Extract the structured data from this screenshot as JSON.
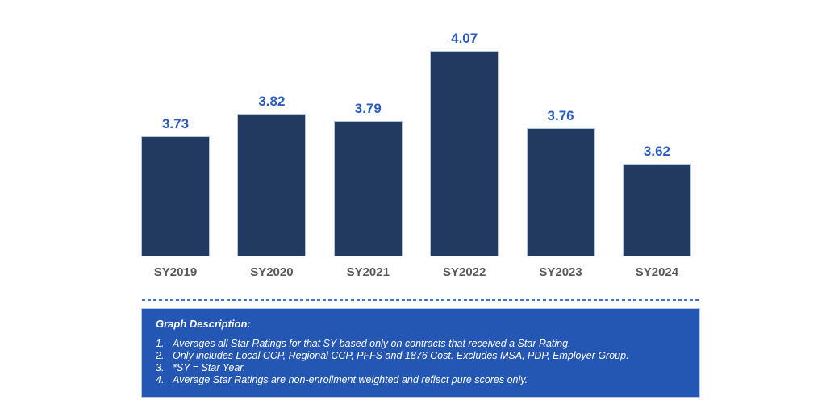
{
  "chart_data": {
    "type": "bar",
    "categories": [
      "SY2019",
      "SY2020",
      "SY2021",
      "SY2022",
      "SY2023",
      "SY2024"
    ],
    "values": [
      3.73,
      3.82,
      3.79,
      4.07,
      3.76,
      3.62
    ],
    "data_labels": [
      "3.73",
      "3.82",
      "3.79",
      "4.07",
      "3.76",
      "3.62"
    ],
    "title": "",
    "xlabel": "",
    "ylabel": "",
    "ylim": [
      3.25,
      4.27
    ],
    "grid": false,
    "legend": "none",
    "bar_color": "#233a60",
    "bar_border_color": "#b4c6e7",
    "label_color": "#2b5bc0",
    "axis_label_color": "#595959"
  },
  "separator": {
    "style": "dashed",
    "color": "#4472c4"
  },
  "description_box": {
    "bg_color": "#2456b4",
    "text_color": "#ffffff",
    "title": "Graph Description:",
    "items": [
      "Averages all Star Ratings for that SY based only on contracts that received a Star Rating.",
      "Only includes Local CCP, Regional CCP, PFFS and 1876 Cost. Excludes MSA, PDP, Employer Group.",
      "*SY = Star Year.",
      "Average Star Ratings are non-enrollment weighted and reflect pure scores only."
    ]
  }
}
